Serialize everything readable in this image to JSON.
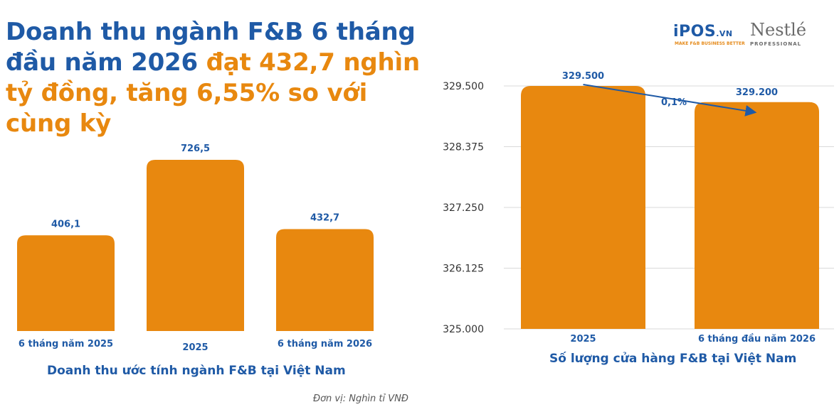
{
  "colors": {
    "blue": "#1f5aa6",
    "orange": "#e8880f",
    "grid": "#d9d9d9"
  },
  "headline": {
    "part1": "Doanh thu ngành F&B 6 tháng đầu năm 2026 ",
    "part2": "đạt 432,7 nghìn tỷ đồng, tăng 6,55% so với cùng kỳ"
  },
  "logos": {
    "ipos_main": "iPOS",
    "ipos_suffix": ".VN",
    "ipos_tagline": "MAKE F&B BUSINESS BETTER",
    "nestle_main": "Nestlé",
    "nestle_tagline": "PROFESSIONAL"
  },
  "unit_note": "Đơn vị: Nghìn tỉ VNĐ",
  "chart_data": [
    {
      "type": "bar",
      "title": "Doanh thu ước tính ngành F&B tại Việt Nam",
      "categories": [
        "6 tháng năm 2025",
        "2025",
        "6 tháng năm 2026"
      ],
      "values": [
        406.1,
        726.5,
        432.7
      ],
      "value_labels": [
        "406,1",
        "726,5",
        "432,7"
      ],
      "ylim": [
        0,
        726.5
      ],
      "grid": false
    },
    {
      "type": "bar",
      "title": "Số lượng cửa hàng F&B tại Việt Nam",
      "categories": [
        "2025",
        "6 tháng đầu năm 2026"
      ],
      "values": [
        329500,
        329200
      ],
      "value_labels": [
        "329.500",
        "329.200"
      ],
      "ylim": [
        325000,
        329500
      ],
      "yticks": [
        325000,
        326125,
        327250,
        328375,
        329500
      ],
      "ytick_labels": [
        "325.000",
        "326.125",
        "327.250",
        "328.375",
        "329.500"
      ],
      "grid": true,
      "annotation": "0,1%"
    }
  ]
}
